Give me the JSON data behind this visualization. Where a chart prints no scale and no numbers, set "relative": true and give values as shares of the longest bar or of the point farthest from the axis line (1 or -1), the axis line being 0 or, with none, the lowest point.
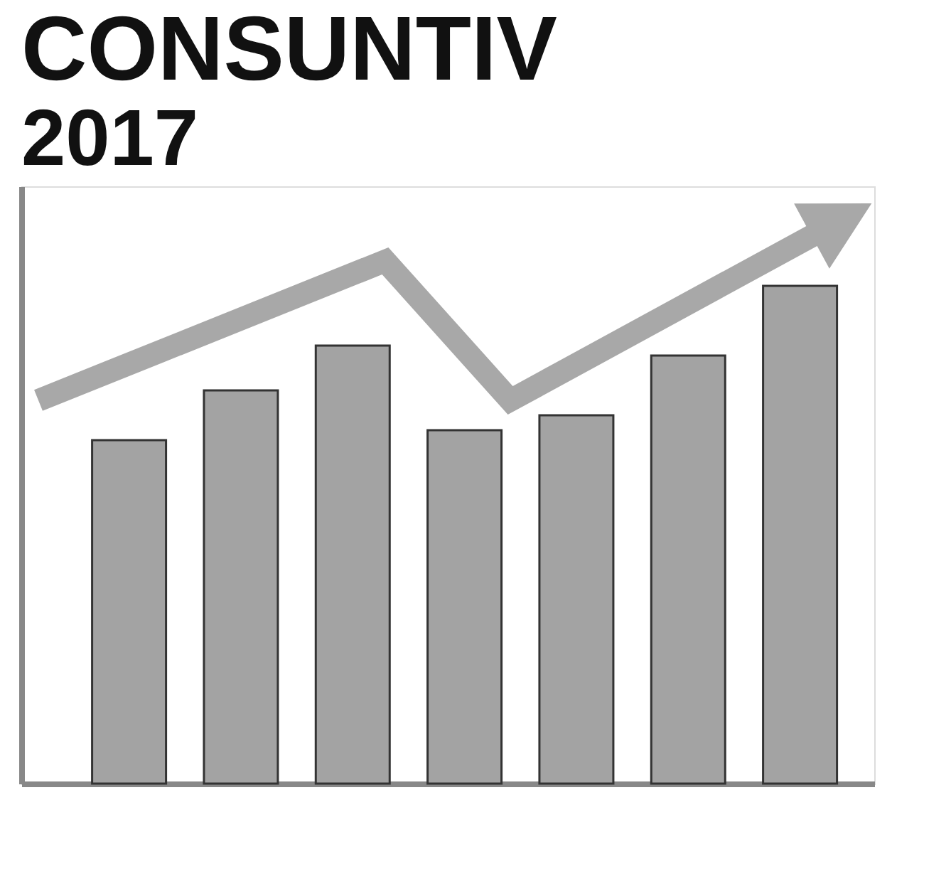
{
  "chart_data": {
    "type": "bar",
    "title": "CONSUNTIV",
    "subtitle": "2017",
    "relative": true,
    "categories": [
      null,
      null,
      null,
      null,
      null,
      null,
      null
    ],
    "series": [
      {
        "color": "#a3a3a3",
        "values": [
          0.69,
          0.79,
          0.88,
          0.71,
          0.74,
          0.86,
          1.0
        ]
      }
    ],
    "grid": false
  }
}
